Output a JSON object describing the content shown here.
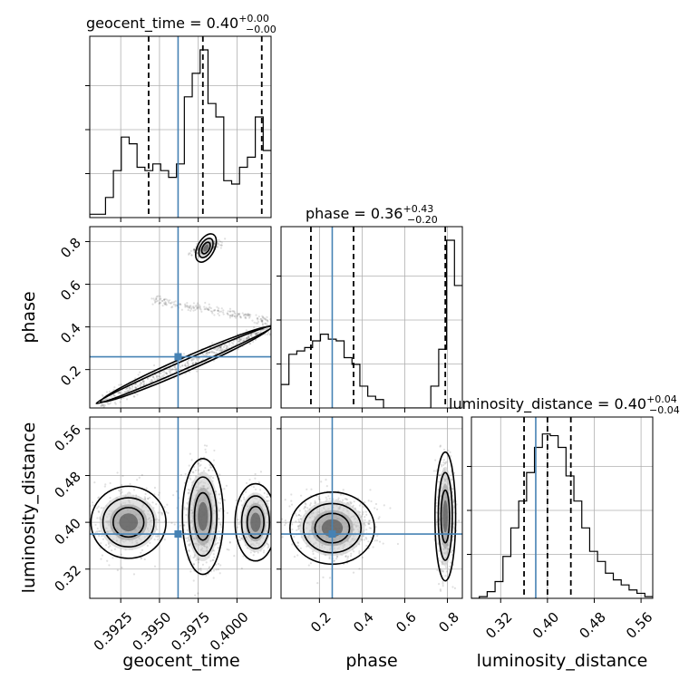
{
  "chart_data": {
    "type": "corner",
    "parameters": [
      {
        "name": "geocent_time",
        "truth": 0.3962,
        "range": [
          0.3905,
          0.4022
        ],
        "ticks": [
          0.3925,
          0.395,
          0.3975,
          0.4
        ],
        "tick_labels": [
          "0.3925",
          "0.3950",
          "0.3975",
          "0.4000"
        ],
        "quantiles": [
          0.3943,
          0.3978,
          0.4016
        ]
      },
      {
        "name": "phase",
        "truth": 0.26,
        "range": [
          0.02,
          0.87
        ],
        "ticks": [
          0.2,
          0.4,
          0.6,
          0.8
        ],
        "tick_labels": [
          "0.2",
          "0.4",
          "0.6",
          "0.8"
        ],
        "quantiles": [
          0.16,
          0.36,
          0.79
        ]
      },
      {
        "name": "luminosity_distance",
        "truth": 0.38,
        "range": [
          0.27,
          0.58
        ],
        "ticks": [
          0.32,
          0.4,
          0.48,
          0.56
        ],
        "tick_labels": [
          "0.32",
          "0.40",
          "0.48",
          "0.56"
        ],
        "quantiles": [
          0.36,
          0.4,
          0.44
        ]
      }
    ],
    "titles": [
      {
        "prefix": "geocent_time = 0.40",
        "sup": "+0.00",
        "sub": "−0.00"
      },
      {
        "prefix": "phase = 0.36",
        "sup": "+0.43",
        "sub": "−0.20"
      },
      {
        "prefix": "luminosity_distance = 0.40",
        "sup": "+0.04",
        "sub": "−0.04"
      }
    ],
    "histograms": {
      "geocent_time": [
        0.02,
        0.02,
        0.12,
        0.28,
        0.48,
        0.44,
        0.3,
        0.28,
        0.32,
        0.28,
        0.24,
        0.32,
        0.72,
        0.86,
        1.0,
        0.68,
        0.6,
        0.22,
        0.2,
        0.3,
        0.36,
        0.6,
        0.4
      ],
      "phase": [
        0.14,
        0.32,
        0.34,
        0.36,
        0.4,
        0.44,
        0.41,
        0.4,
        0.3,
        0.26,
        0.13,
        0.07,
        0.05,
        0.0,
        0.0,
        0.0,
        0.0,
        0.0,
        0.0,
        0.13,
        0.35,
        1.0,
        0.73
      ],
      "luminosity_distance": [
        0.0,
        0.01,
        0.04,
        0.1,
        0.25,
        0.42,
        0.58,
        0.75,
        0.9,
        0.98,
        0.97,
        0.9,
        0.73,
        0.58,
        0.42,
        0.28,
        0.22,
        0.15,
        0.11,
        0.08,
        0.05,
        0.03,
        0.01
      ]
    },
    "truth_color": "#4682b4",
    "grid": true
  }
}
